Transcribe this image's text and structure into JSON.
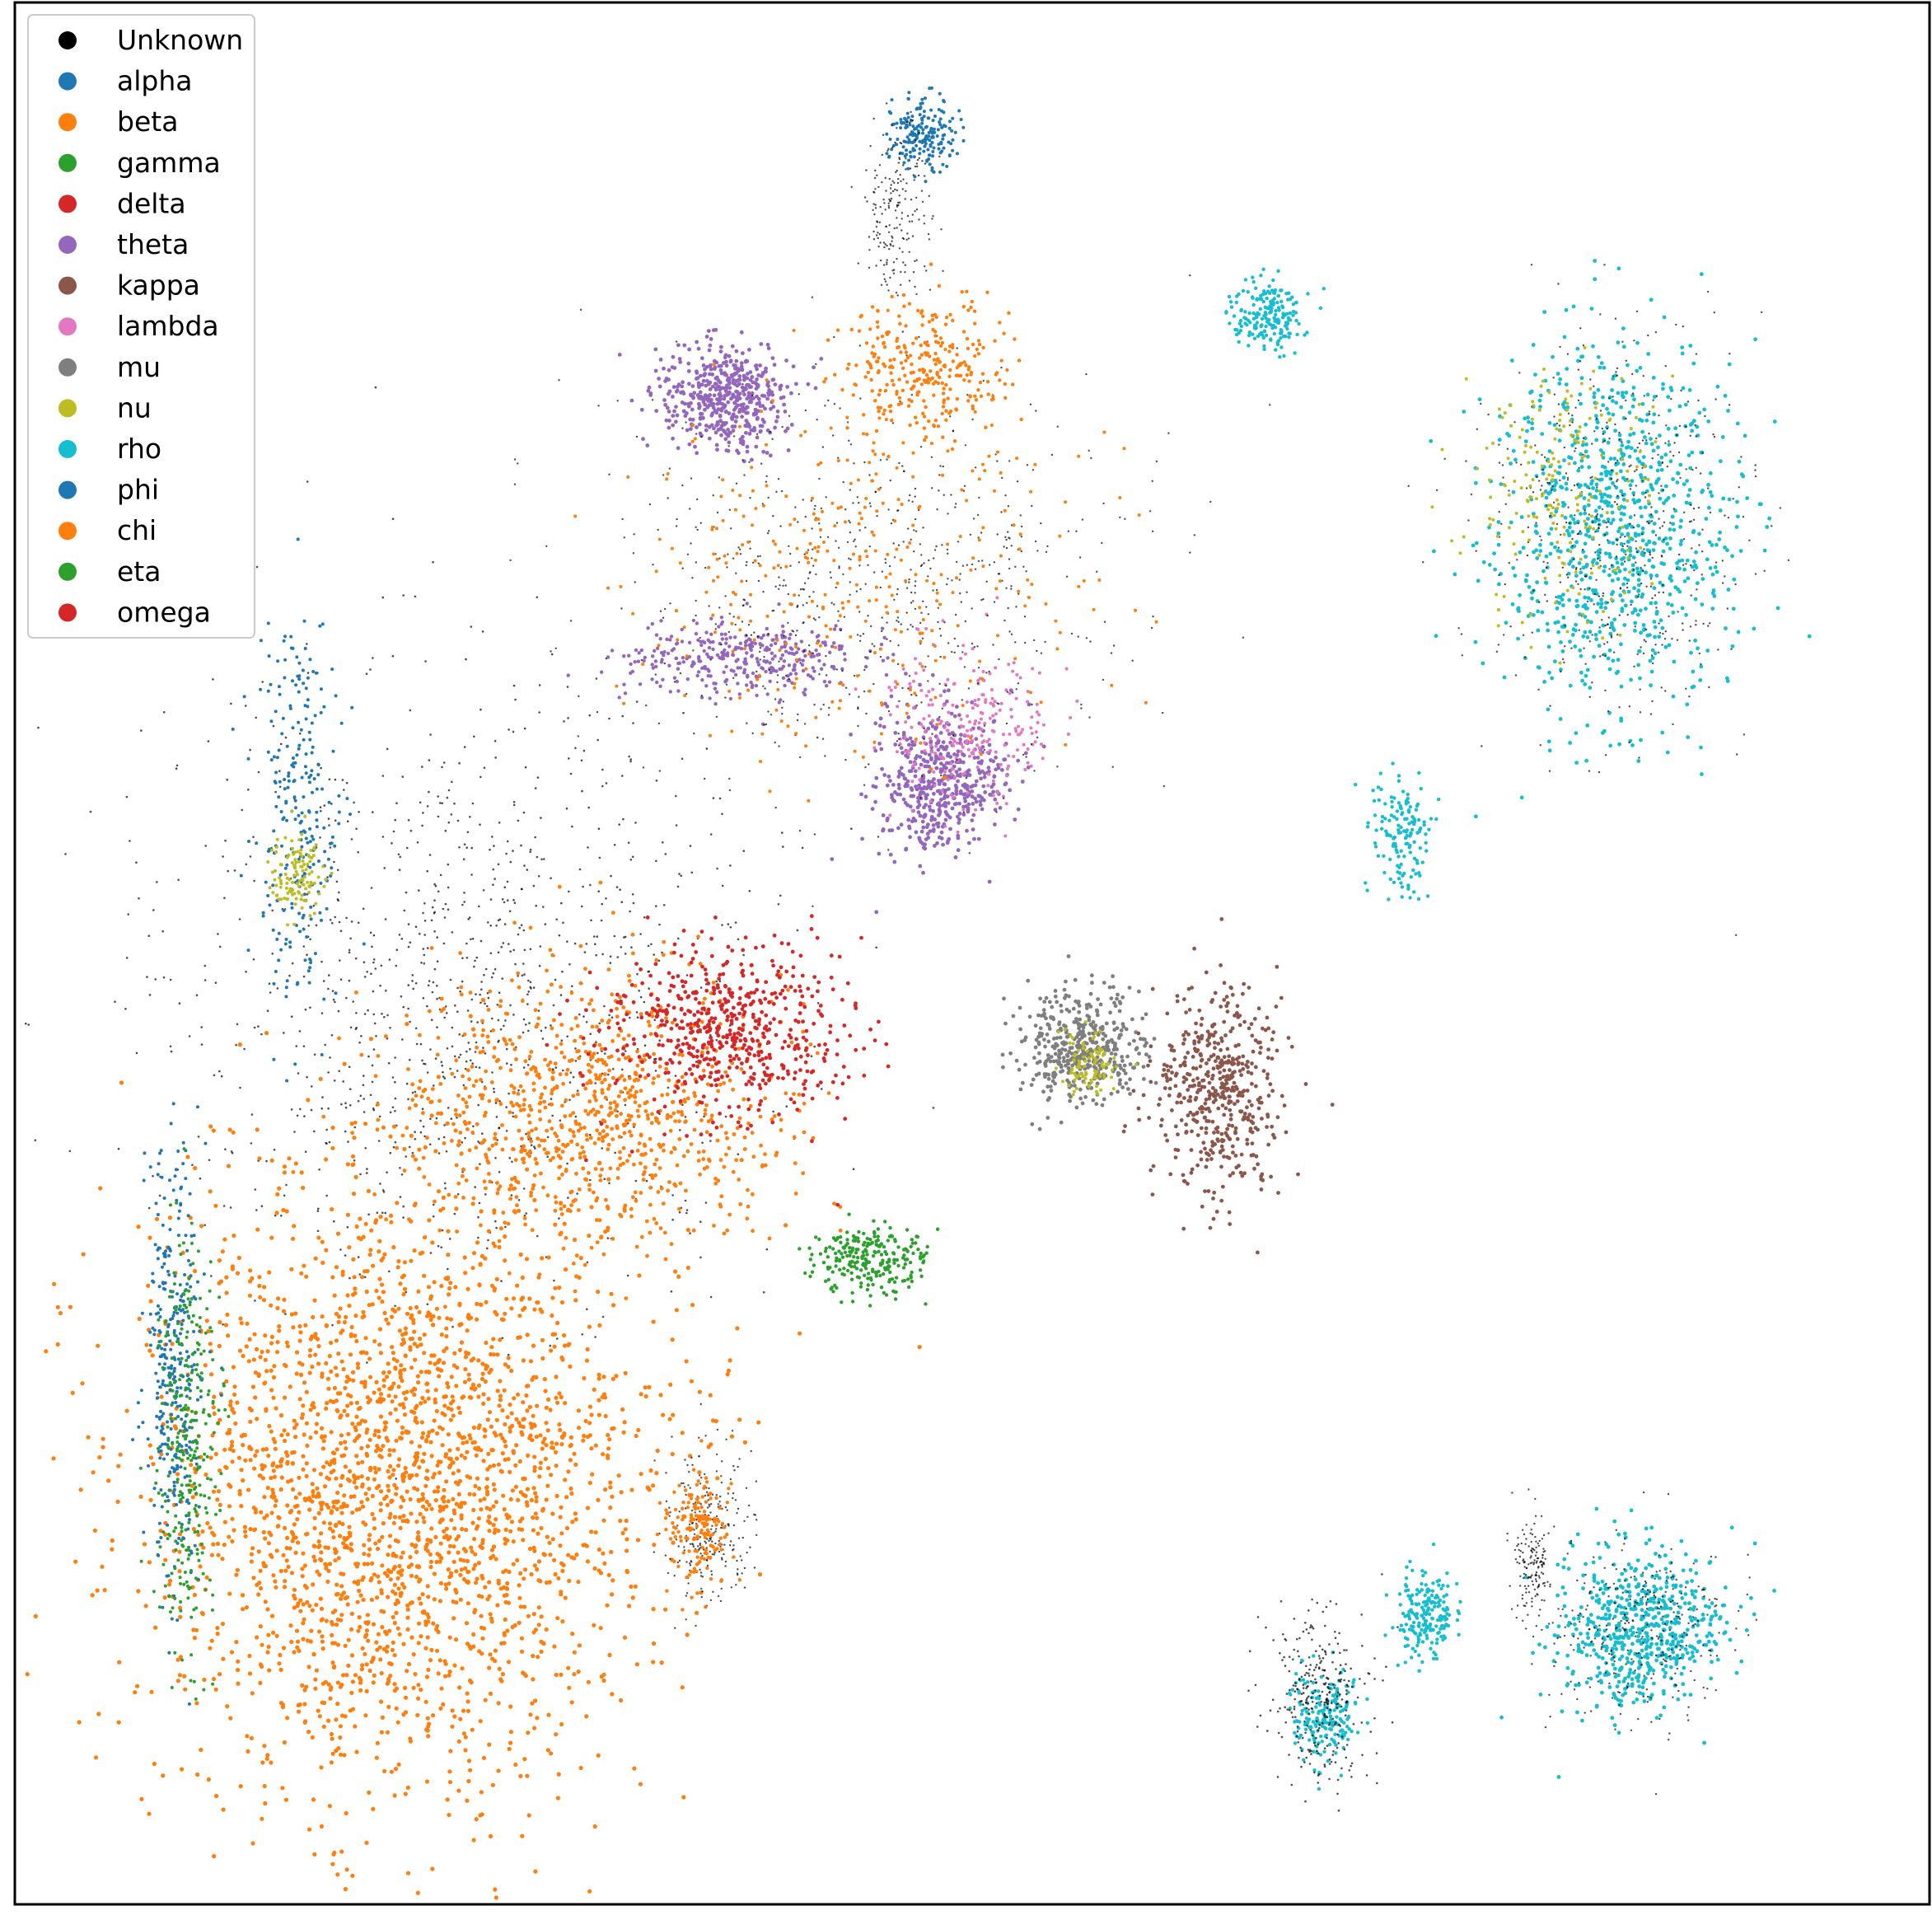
{
  "chart_data": {
    "type": "scatter",
    "title": "",
    "xlabel": "",
    "ylabel": "",
    "grid": false,
    "axis_ticks": false,
    "legend_position": "top-left",
    "series": [
      {
        "name": "Unknown",
        "color": "#000000"
      },
      {
        "name": "alpha",
        "color": "#1f77b4"
      },
      {
        "name": "beta",
        "color": "#ff7f0e"
      },
      {
        "name": "gamma",
        "color": "#2ca02c"
      },
      {
        "name": "delta",
        "color": "#d62728"
      },
      {
        "name": "theta",
        "color": "#9467bd"
      },
      {
        "name": "kappa",
        "color": "#8c564b"
      },
      {
        "name": "lambda",
        "color": "#e377c2"
      },
      {
        "name": "mu",
        "color": "#7f7f7f"
      },
      {
        "name": "nu",
        "color": "#bcbd22"
      },
      {
        "name": "rho",
        "color": "#17becf"
      },
      {
        "name": "phi",
        "color": "#1f77b4"
      },
      {
        "name": "chi",
        "color": "#ff7f0e"
      },
      {
        "name": "eta",
        "color": "#2ca02c"
      },
      {
        "name": "omega",
        "color": "#d62728"
      }
    ]
  }
}
